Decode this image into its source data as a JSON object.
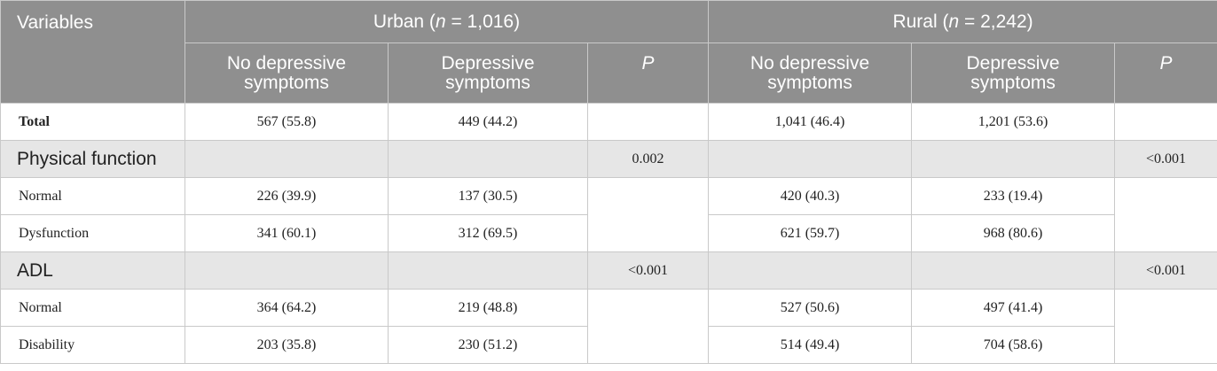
{
  "header": {
    "variables_label": "Variables",
    "urban": {
      "name": "Urban (",
      "n_symbol": "n",
      "n_value": " = 1,016)"
    },
    "rural": {
      "name": "Rural (",
      "n_symbol": "n",
      "n_value": " = 2,242)"
    },
    "sub": {
      "no_dep_line1": "No depressive",
      "no_dep_line2": "symptoms",
      "dep_line1": "Depressive",
      "dep_line2": "symptoms",
      "p": "P"
    }
  },
  "rows": {
    "total": {
      "label": "Total",
      "urban_no": "567 (55.8)",
      "urban_dep": "449 (44.2)",
      "rural_no": "1,041 (46.4)",
      "rural_dep": "1,201 (53.6)"
    },
    "physical": {
      "label": "Physical function",
      "urban_p": "0.002",
      "rural_p": "<0.001"
    },
    "pf_normal": {
      "label": "Normal",
      "urban_no": "226 (39.9)",
      "urban_dep": "137 (30.5)",
      "rural_no": "420 (40.3)",
      "rural_dep": "233 (19.4)"
    },
    "pf_dysfunction": {
      "label": "Dysfunction",
      "urban_no": "341 (60.1)",
      "urban_dep": "312 (69.5)",
      "rural_no": "621 (59.7)",
      "rural_dep": "968 (80.6)"
    },
    "adl": {
      "label": "ADL",
      "urban_p": "<0.001",
      "rural_p": "<0.001"
    },
    "adl_normal": {
      "label": "Normal",
      "urban_no": "364 (64.2)",
      "urban_dep": "219 (48.8)",
      "rural_no": "527 (50.6)",
      "rural_dep": "497 (41.4)"
    },
    "adl_disability": {
      "label": "Disability",
      "urban_no": "203 (35.8)",
      "urban_dep": "230 (51.2)",
      "rural_no": "514 (49.4)",
      "rural_dep": "704 (58.6)"
    }
  }
}
